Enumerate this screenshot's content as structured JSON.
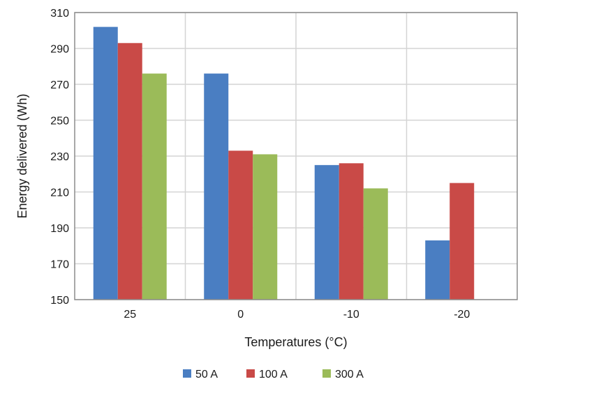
{
  "chart_data": {
    "type": "bar",
    "title": "",
    "xlabel": "Temperatures (°C)",
    "ylabel": "Energy delivered (Wh)",
    "categories": [
      "25",
      "0",
      "-10",
      "-20"
    ],
    "ylim": [
      150,
      310
    ],
    "yticks": [
      150,
      170,
      190,
      210,
      230,
      250,
      270,
      290,
      310
    ],
    "grid": true,
    "legend_position": "bottom",
    "series": [
      {
        "name": "50 A",
        "color": "#4A7EC2",
        "values": [
          302,
          276,
          225,
          183
        ]
      },
      {
        "name": "100 A",
        "color": "#C94A47",
        "values": [
          293,
          233,
          226,
          215
        ]
      },
      {
        "name": "300 A",
        "color": "#9BBB59",
        "values": [
          276,
          231,
          212,
          null
        ]
      }
    ]
  }
}
